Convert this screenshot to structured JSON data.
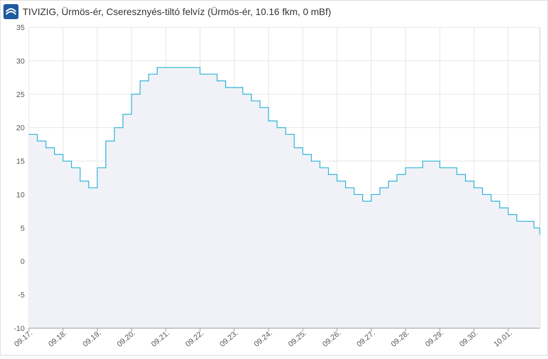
{
  "chart_data": {
    "type": "line",
    "step": true,
    "title": "TIVIZIG, Ürmös-ér, Cseresznyés-tiltó felvíz (Ürmös-ér, 10.16 fkm, 0 mBf)",
    "x": [
      0,
      0.25,
      0.5,
      0.75,
      1,
      1.25,
      1.5,
      1.75,
      2,
      2.25,
      2.5,
      2.75,
      3,
      3.25,
      3.5,
      3.75,
      4,
      4.25,
      4.5,
      4.75,
      5,
      5.25,
      5.5,
      5.75,
      6,
      6.25,
      6.5,
      6.75,
      7,
      7.25,
      7.5,
      7.75,
      8,
      8.25,
      8.5,
      8.75,
      9,
      9.25,
      9.5,
      9.75,
      10,
      10.25,
      10.5,
      10.75,
      11,
      11.25,
      11.5,
      11.75,
      12,
      12.25,
      12.5,
      12.75,
      13,
      13.25,
      13.5,
      13.75,
      14,
      14.25,
      14.5,
      14.75,
      14.92
    ],
    "series": [
      {
        "color": "#29b2d6",
        "fill": "#f1f2f8",
        "values": [
          19,
          18,
          17,
          16,
          15,
          14,
          12,
          11,
          14,
          18,
          20,
          22,
          25,
          27,
          28,
          29,
          29,
          29,
          29,
          29,
          28,
          28,
          27,
          26,
          26,
          25,
          24,
          23,
          21,
          20,
          19,
          17,
          16,
          15,
          14,
          13,
          12,
          11,
          10,
          9,
          10,
          11,
          12,
          13,
          14,
          14,
          15,
          15,
          14,
          14,
          13,
          12,
          11,
          10,
          9,
          8,
          7,
          6,
          6,
          5,
          4
        ]
      }
    ],
    "xlim": [
      0,
      14.92
    ],
    "xticks": [
      {
        "value": 0,
        "label": "09.17."
      },
      {
        "value": 1,
        "label": "09.18."
      },
      {
        "value": 2,
        "label": "09.19."
      },
      {
        "value": 3,
        "label": "09.20."
      },
      {
        "value": 4,
        "label": "09.21."
      },
      {
        "value": 5,
        "label": "09.22."
      },
      {
        "value": 6,
        "label": "09.23."
      },
      {
        "value": 7,
        "label": "09.24."
      },
      {
        "value": 8,
        "label": "09.25."
      },
      {
        "value": 9,
        "label": "09.26."
      },
      {
        "value": 10,
        "label": "09.27."
      },
      {
        "value": 11,
        "label": "09.28."
      },
      {
        "value": 12,
        "label": "09.29."
      },
      {
        "value": 13,
        "label": "09.30."
      },
      {
        "value": 14,
        "label": "10.01."
      }
    ],
    "ylim": [
      -10,
      35
    ],
    "yticks": [
      -10,
      -5,
      0,
      5,
      10,
      15,
      20,
      25,
      30,
      35
    ],
    "grid": true
  }
}
